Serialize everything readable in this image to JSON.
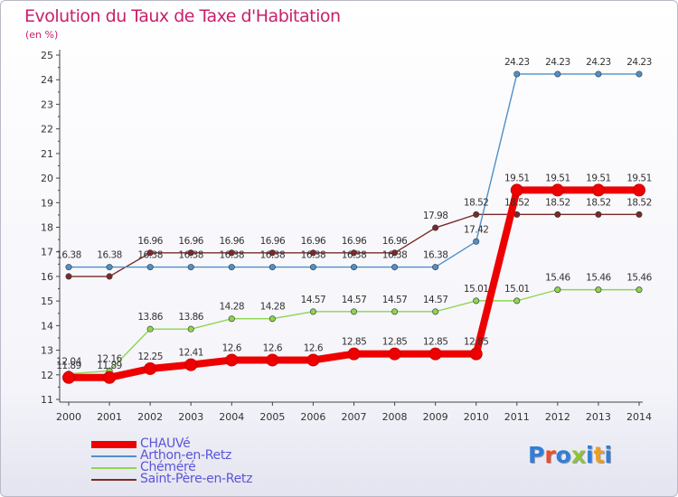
{
  "title": "Evolution du Taux de Taxe d'Habitation",
  "subtitle": "(en %)",
  "logo": {
    "letters": [
      "P",
      "r",
      "o",
      "x",
      "i",
      "t",
      "i"
    ],
    "colors": [
      "#2f7fd6",
      "#e8502a",
      "#2f7fd6",
      "#8bc43a",
      "#2f7fd6",
      "#e8a024",
      "#2f7fd6"
    ]
  },
  "chart_data": {
    "type": "line",
    "x": [
      "2000",
      "2001",
      "2002",
      "2003",
      "2004",
      "2005",
      "2006",
      "2007",
      "2008",
      "2009",
      "2010",
      "2011",
      "2012",
      "2013",
      "2014"
    ],
    "ylim": [
      11,
      25
    ],
    "yticks": [
      "11",
      "12",
      "13",
      "14",
      "15",
      "16",
      "17",
      "18",
      "19",
      "20",
      "21",
      "22",
      "23",
      "24",
      "25"
    ],
    "grid": false,
    "legend_position": "bottom-left",
    "series": [
      {
        "name": "Saint-Père-en-Retz",
        "color": "#7a2a2a",
        "values": [
          16.0,
          16.0,
          16.96,
          16.96,
          16.96,
          16.96,
          16.96,
          16.96,
          16.96,
          17.98,
          18.52,
          18.52,
          18.52,
          18.52,
          18.52
        ],
        "labels": [
          "",
          "",
          "16.96",
          "16.96",
          "16.96",
          "16.96",
          "16.96",
          "16.96",
          "16.96",
          "17.98",
          "18.52",
          "18.52",
          "18.52",
          "18.52",
          "18.52"
        ]
      },
      {
        "name": "Arthon-en-Retz",
        "color": "#4f90c8",
        "values": [
          16.38,
          16.38,
          16.38,
          16.38,
          16.38,
          16.38,
          16.38,
          16.38,
          16.38,
          16.38,
          17.42,
          24.23,
          24.23,
          24.23,
          24.23
        ],
        "labels": [
          "16.38",
          "16.38",
          "16.38",
          "16.38",
          "16.38",
          "16.38",
          "16.38",
          "16.38",
          "16.38",
          "16.38",
          "17.42",
          "24.23",
          "24.23",
          "24.23",
          "24.23"
        ]
      },
      {
        "name": "Chéméré",
        "color": "#8fd44f",
        "values": [
          12.04,
          12.16,
          13.86,
          13.86,
          14.28,
          14.28,
          14.57,
          14.57,
          14.57,
          14.57,
          15.01,
          15.01,
          15.46,
          15.46,
          15.46
        ],
        "labels": [
          "12.04",
          "12.16",
          "13.86",
          "13.86",
          "14.28",
          "14.28",
          "14.57",
          "14.57",
          "14.57",
          "14.57",
          "15.01",
          "15.01",
          "15.46",
          "15.46",
          "15.46"
        ]
      },
      {
        "name": "CHAUVé",
        "color": "#ee0000",
        "values": [
          11.89,
          11.89,
          12.25,
          12.41,
          12.6,
          12.6,
          12.6,
          12.85,
          12.85,
          12.85,
          12.85,
          19.51,
          19.51,
          19.51,
          19.51
        ],
        "labels": [
          "11.89",
          "11.89",
          "12.25",
          "12.41",
          "12.6",
          "12.6",
          "12.6",
          "12.85",
          "12.85",
          "12.85",
          "12.85",
          "19.51",
          "19.51",
          "19.51",
          "19.51"
        ]
      }
    ],
    "legend_order": [
      "CHAUVé",
      "Arthon-en-Retz",
      "Chéméré",
      "Saint-Père-en-Retz"
    ]
  }
}
